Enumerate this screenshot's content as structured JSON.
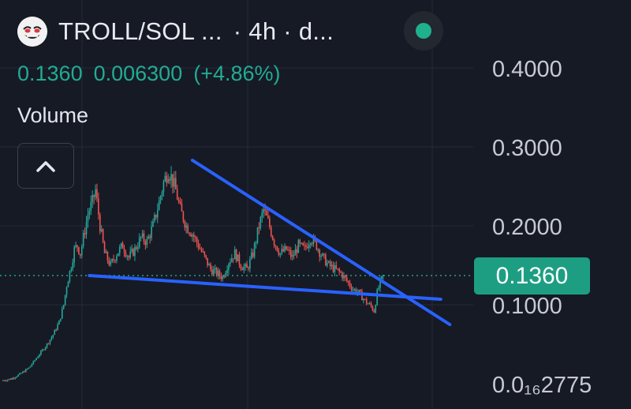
{
  "header": {
    "pair": "TROLL/SOL ...",
    "interval": "· 4h · d...",
    "avatar_icon": "troll-face-icon",
    "live_icon": "live-status-dot-icon"
  },
  "quote": {
    "price": "0.1360",
    "change_abs": "0.006300",
    "change_pct": "(+4.86%)"
  },
  "volume_label": "Volume",
  "collapse_icon": "chevron-up-icon",
  "colors": {
    "background": "#161a25",
    "up": "#26a69a",
    "down": "#ef5350",
    "trendline": "#2962ff",
    "price_tag": "#1d9e83",
    "grid": "#262b38"
  },
  "chart_data": {
    "type": "candlestick",
    "title": "TROLL/SOL · 4h",
    "y_ticks": [
      "0.4000",
      "0.3000",
      "0.2000",
      "0.1000",
      "0.0₁₆2775"
    ],
    "y_tick_values": [
      0.4,
      0.3,
      0.2,
      0.1,
      0.0
    ],
    "ylim": [
      0.0,
      0.44
    ],
    "last_price": 0.136,
    "last_price_label": "0.1360",
    "grid": true,
    "series_anchors": [
      [
        0,
        0.004
      ],
      [
        6,
        0.006
      ],
      [
        12,
        0.012
      ],
      [
        18,
        0.02
      ],
      [
        22,
        0.03
      ],
      [
        26,
        0.04
      ],
      [
        30,
        0.05
      ],
      [
        34,
        0.062
      ],
      [
        38,
        0.078
      ],
      [
        41,
        0.1
      ],
      [
        43,
        0.125
      ],
      [
        46,
        0.15
      ],
      [
        48,
        0.17
      ],
      [
        50,
        0.175
      ],
      [
        52,
        0.165
      ],
      [
        55,
        0.195
      ],
      [
        57,
        0.215
      ],
      [
        60,
        0.23
      ],
      [
        62,
        0.245
      ],
      [
        65,
        0.2
      ],
      [
        68,
        0.165
      ],
      [
        72,
        0.15
      ],
      [
        76,
        0.165
      ],
      [
        80,
        0.175
      ],
      [
        84,
        0.16
      ],
      [
        88,
        0.17
      ],
      [
        92,
        0.185
      ],
      [
        96,
        0.18
      ],
      [
        100,
        0.2
      ],
      [
        104,
        0.23
      ],
      [
        107,
        0.255
      ],
      [
        110,
        0.27
      ],
      [
        112,
        0.262
      ],
      [
        115,
        0.245
      ],
      [
        118,
        0.22
      ],
      [
        122,
        0.2
      ],
      [
        126,
        0.19
      ],
      [
        130,
        0.175
      ],
      [
        134,
        0.16
      ],
      [
        138,
        0.145
      ],
      [
        142,
        0.14
      ],
      [
        146,
        0.135
      ],
      [
        150,
        0.155
      ],
      [
        154,
        0.165
      ],
      [
        158,
        0.15
      ],
      [
        162,
        0.145
      ],
      [
        166,
        0.165
      ],
      [
        170,
        0.2
      ],
      [
        173,
        0.22
      ],
      [
        176,
        0.205
      ],
      [
        180,
        0.18
      ],
      [
        184,
        0.165
      ],
      [
        188,
        0.17
      ],
      [
        192,
        0.16
      ],
      [
        196,
        0.175
      ],
      [
        200,
        0.17
      ],
      [
        204,
        0.185
      ],
      [
        208,
        0.175
      ],
      [
        212,
        0.16
      ],
      [
        216,
        0.15
      ],
      [
        220,
        0.145
      ],
      [
        224,
        0.14
      ],
      [
        228,
        0.13
      ],
      [
        232,
        0.12
      ],
      [
        236,
        0.115
      ],
      [
        240,
        0.105
      ],
      [
        244,
        0.098
      ],
      [
        246,
        0.092
      ],
      [
        248,
        0.115
      ],
      [
        250,
        0.128
      ],
      [
        252,
        0.136
      ]
    ],
    "trendlines": [
      {
        "name": "descending resistance",
        "points": [
          [
            126,
            0.283
          ],
          [
            296,
            0.075
          ]
        ]
      },
      {
        "name": "support",
        "points": [
          [
            58,
            0.137
          ],
          [
            290,
            0.107
          ]
        ]
      }
    ]
  }
}
